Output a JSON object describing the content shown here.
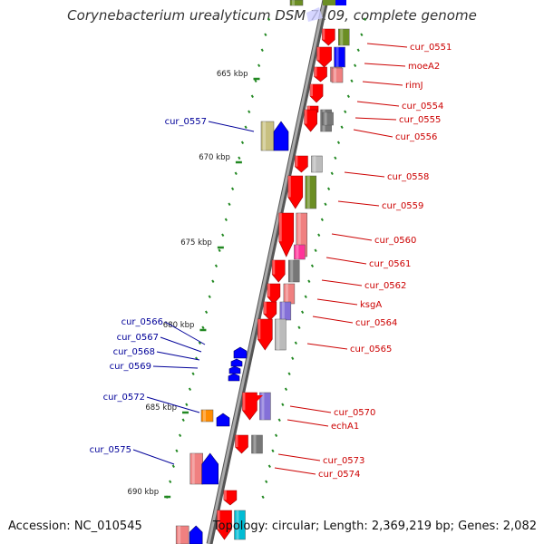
{
  "title": "Corynebacterium urealyticum DSM 7109, complete genome",
  "footer": {
    "accession": "Accession: NC_010545",
    "topology": "Topology: circular; Length: 2,369,219 bp; Genes: 2,082"
  },
  "colors": {
    "forward_gene": "#ff0000",
    "reverse_gene": "#0000ff",
    "right_label": "#cc0000",
    "left_label": "#000099",
    "backbone": "#999999",
    "tick": "#228822"
  },
  "kbp_marks": [
    {
      "label": "665 kbp",
      "pos": 665
    },
    {
      "label": "670 kbp",
      "pos": 670
    },
    {
      "label": "675 kbp",
      "pos": 675
    },
    {
      "label": "680 kbp",
      "pos": 680
    },
    {
      "label": "685 kbp",
      "pos": 685
    },
    {
      "label": "690 kbp",
      "pos": 690
    }
  ],
  "right_genes": [
    {
      "name": "cur_0551"
    },
    {
      "name": "moeA2"
    },
    {
      "name": "rimJ"
    },
    {
      "name": "cur_0554"
    },
    {
      "name": "cur_0555"
    },
    {
      "name": "cur_0556"
    },
    {
      "name": "cur_0558"
    },
    {
      "name": "cur_0559"
    },
    {
      "name": "cur_0560"
    },
    {
      "name": "cur_0561"
    },
    {
      "name": "cur_0562"
    },
    {
      "name": "ksgA"
    },
    {
      "name": "cur_0564"
    },
    {
      "name": "cur_0565"
    },
    {
      "name": "cur_0570"
    },
    {
      "name": "echA1"
    },
    {
      "name": "cur_0573"
    },
    {
      "name": "cur_0574"
    }
  ],
  "left_genes": [
    {
      "name": "cur_0557"
    },
    {
      "name": "cur_0566"
    },
    {
      "name": "cur_0567"
    },
    {
      "name": "cur_0568"
    },
    {
      "name": "cur_0569"
    },
    {
      "name": "cur_0572"
    },
    {
      "name": "cur_0575"
    }
  ]
}
